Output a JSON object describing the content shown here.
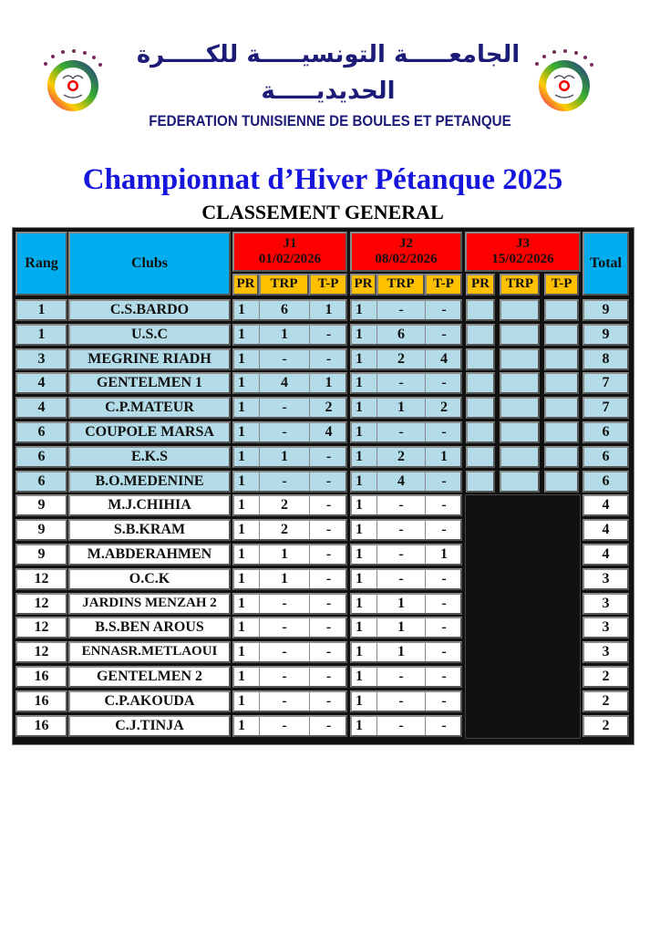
{
  "header": {
    "arabic_line1": "الجامعـــــة التونسيـــــة للكـــــرة",
    "arabic_line2": "الحديديـــــة",
    "federation": "FEDERATION TUNISIENNE DE  BOULES  ET PETANQUE",
    "logo_icon": "federation-logo-icon"
  },
  "title": "Championnat d’Hiver Pétanque 2025",
  "subtitle": "CLASSEMENT GENERAL",
  "colors": {
    "header_blue": "#00aeef",
    "header_red": "#ff0000",
    "subheader_yellow": "#ffc000",
    "row_blue": "#b4dce8",
    "row_white": "#ffffff",
    "table_bg": "#111111",
    "title_blue": "#1515dd"
  },
  "table": {
    "col_rang": "Rang",
    "col_clubs": "Clubs",
    "col_total": "Total",
    "journees": [
      {
        "label": "J1",
        "date": "01/02/2026"
      },
      {
        "label": "J2",
        "date": "08/02/2026"
      },
      {
        "label": "J3",
        "date": "15/02/2026"
      }
    ],
    "sub_cols": [
      "PR",
      "TRP",
      "T-P"
    ],
    "rows": [
      {
        "rang": "1",
        "club": "C.S.BARDO",
        "j1": [
          "1",
          "6",
          "1"
        ],
        "j2": [
          "1",
          "-",
          "-"
        ],
        "j3": [
          "",
          "",
          ""
        ],
        "total": "9"
      },
      {
        "rang": "1",
        "club": "U.S.C",
        "j1": [
          "1",
          "1",
          "-"
        ],
        "j2": [
          "1",
          "6",
          "-"
        ],
        "j3": [
          "",
          "",
          ""
        ],
        "total": "9"
      },
      {
        "rang": "3",
        "club": "MEGRINE RIADH",
        "j1": [
          "1",
          "-",
          "-"
        ],
        "j2": [
          "1",
          "2",
          "4"
        ],
        "j3": [
          "",
          "",
          ""
        ],
        "total": "8"
      },
      {
        "rang": "4",
        "club": "GENTELMEN 1",
        "j1": [
          "1",
          "4",
          "1"
        ],
        "j2": [
          "1",
          "-",
          "-"
        ],
        "j3": [
          "",
          "",
          ""
        ],
        "total": "7"
      },
      {
        "rang": "4",
        "club": "C.P.MATEUR",
        "j1": [
          "1",
          "-",
          "2"
        ],
        "j2": [
          "1",
          "1",
          "2"
        ],
        "j3": [
          "",
          "",
          ""
        ],
        "total": "7"
      },
      {
        "rang": "6",
        "club": "COUPOLE MARSA",
        "j1": [
          "1",
          "-",
          "4"
        ],
        "j2": [
          "1",
          "-",
          "-"
        ],
        "j3": [
          "",
          "",
          ""
        ],
        "total": "6"
      },
      {
        "rang": "6",
        "club": "E.K.S",
        "j1": [
          "1",
          "1",
          "-"
        ],
        "j2": [
          "1",
          "2",
          "1"
        ],
        "j3": [
          "",
          "",
          ""
        ],
        "total": "6"
      },
      {
        "rang": "6",
        "club": "B.O.MEDENINE",
        "j1": [
          "1",
          "-",
          "-"
        ],
        "j2": [
          "1",
          "4",
          "-"
        ],
        "j3": [
          "",
          "",
          ""
        ],
        "total": "6"
      },
      {
        "rang": "9",
        "club": "M.J.CHIHIA",
        "j1": [
          "1",
          "2",
          "-"
        ],
        "j2": [
          "1",
          "-",
          "-"
        ],
        "j3": null,
        "total": "4"
      },
      {
        "rang": "9",
        "club": "S.B.KRAM",
        "j1": [
          "1",
          "2",
          "-"
        ],
        "j2": [
          "1",
          "-",
          "-"
        ],
        "j3": null,
        "total": "4"
      },
      {
        "rang": "9",
        "club": "M.ABDERAHMEN",
        "j1": [
          "1",
          "1",
          "-"
        ],
        "j2": [
          "1",
          "-",
          "1"
        ],
        "j3": null,
        "total": "4"
      },
      {
        "rang": "12",
        "club": "O.C.K",
        "j1": [
          "1",
          "1",
          "-"
        ],
        "j2": [
          "1",
          "-",
          "-"
        ],
        "j3": null,
        "total": "3"
      },
      {
        "rang": "12",
        "club": "JARDINS MENZAH 2",
        "j1": [
          "1",
          "-",
          "-"
        ],
        "j2": [
          "1",
          "1",
          "-"
        ],
        "j3": null,
        "total": "3"
      },
      {
        "rang": "12",
        "club": "B.S.BEN AROUS",
        "j1": [
          "1",
          "-",
          "-"
        ],
        "j2": [
          "1",
          "1",
          "-"
        ],
        "j3": null,
        "total": "3"
      },
      {
        "rang": "12",
        "club": "ENNASR.METLAOUI",
        "j1": [
          "1",
          "-",
          "-"
        ],
        "j2": [
          "1",
          "1",
          "-"
        ],
        "j3": null,
        "total": "3"
      },
      {
        "rang": "16",
        "club": "GENTELMEN 2",
        "j1": [
          "1",
          "-",
          "-"
        ],
        "j2": [
          "1",
          "-",
          "-"
        ],
        "j3": null,
        "total": "2"
      },
      {
        "rang": "16",
        "club": "C.P.AKOUDA",
        "j1": [
          "1",
          "-",
          "-"
        ],
        "j2": [
          "1",
          "-",
          "-"
        ],
        "j3": null,
        "total": "2"
      },
      {
        "rang": "16",
        "club": "C.J.TINJA",
        "j1": [
          "1",
          "-",
          "-"
        ],
        "j2": [
          "1",
          "-",
          "-"
        ],
        "j3": null,
        "total": "2"
      }
    ]
  }
}
